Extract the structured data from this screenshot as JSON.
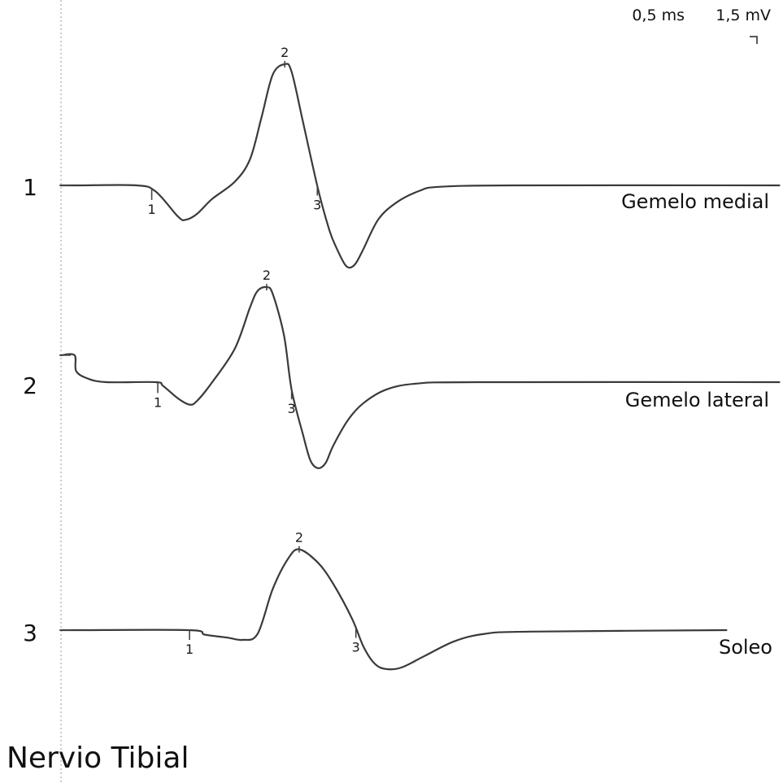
{
  "title": "Nervio Tibial",
  "scale": {
    "time": "0,5 ms",
    "amplitude": "1,5 mV"
  },
  "chart_data": {
    "type": "line",
    "xlabel": "",
    "ylabel": "",
    "grid": false,
    "units": {
      "x": "ms",
      "y": "mV"
    },
    "divisions": {
      "x_ms_per_div": 0.5,
      "y_mV_per_div": 1.5
    },
    "traces": [
      {
        "channel": "1",
        "name": "Gemelo medial",
        "points": [
          [
            0.0,
            0.0
          ],
          [
            0.25,
            0.0
          ],
          [
            1.0,
            0.0
          ],
          [
            1.25,
            -0.08
          ],
          [
            1.55,
            -0.42
          ],
          [
            1.65,
            -0.46
          ],
          [
            1.8,
            -0.38
          ],
          [
            2.0,
            -0.18
          ],
          [
            2.3,
            0.05
          ],
          [
            2.5,
            0.35
          ],
          [
            2.65,
            0.9
          ],
          [
            2.8,
            1.48
          ],
          [
            2.96,
            1.62
          ],
          [
            3.05,
            1.52
          ],
          [
            3.2,
            0.85
          ],
          [
            3.4,
            -0.05
          ],
          [
            3.55,
            -0.6
          ],
          [
            3.65,
            -0.85
          ],
          [
            3.75,
            -1.05
          ],
          [
            3.82,
            -1.1
          ],
          [
            3.9,
            -1.04
          ],
          [
            4.0,
            -0.85
          ],
          [
            4.2,
            -0.45
          ],
          [
            4.45,
            -0.22
          ],
          [
            4.75,
            -0.07
          ],
          [
            5.0,
            -0.02
          ],
          [
            6.0,
            0.0
          ],
          [
            9.5,
            0.0
          ]
        ],
        "markers": [
          {
            "label": "1",
            "x": 1.2
          },
          {
            "label": "2",
            "x": 2.96
          },
          {
            "label": "3",
            "x": 3.39
          }
        ]
      },
      {
        "channel": "2",
        "name": "Gemelo lateral",
        "points": [
          [
            0.0,
            0.36
          ],
          [
            0.18,
            0.36
          ],
          [
            0.2,
            0.15
          ],
          [
            0.35,
            0.05
          ],
          [
            0.6,
            0.0
          ],
          [
            1.25,
            0.0
          ],
          [
            1.35,
            -0.05
          ],
          [
            1.55,
            -0.22
          ],
          [
            1.7,
            -0.3
          ],
          [
            1.8,
            -0.25
          ],
          [
            2.0,
            0.0
          ],
          [
            2.3,
            0.45
          ],
          [
            2.5,
            1.0
          ],
          [
            2.6,
            1.22
          ],
          [
            2.72,
            1.27
          ],
          [
            2.8,
            1.18
          ],
          [
            2.95,
            0.62
          ],
          [
            3.05,
            -0.1
          ],
          [
            3.2,
            -0.7
          ],
          [
            3.3,
            -1.05
          ],
          [
            3.4,
            -1.15
          ],
          [
            3.5,
            -1.08
          ],
          [
            3.6,
            -0.85
          ],
          [
            3.8,
            -0.5
          ],
          [
            4.0,
            -0.28
          ],
          [
            4.3,
            -0.1
          ],
          [
            4.7,
            -0.02
          ],
          [
            5.5,
            0.0
          ],
          [
            9.5,
            0.0
          ]
        ],
        "markers": [
          {
            "label": "1",
            "x": 1.28
          },
          {
            "label": "2",
            "x": 2.72
          },
          {
            "label": "3",
            "x": 3.05
          }
        ]
      },
      {
        "channel": "3",
        "name": "Soleo",
        "points": [
          [
            0.0,
            0.0
          ],
          [
            0.25,
            0.0
          ],
          [
            1.7,
            0.0
          ],
          [
            1.9,
            -0.06
          ],
          [
            2.2,
            -0.1
          ],
          [
            2.4,
            -0.13
          ],
          [
            2.6,
            -0.05
          ],
          [
            2.8,
            0.55
          ],
          [
            3.0,
            0.95
          ],
          [
            3.15,
            1.08
          ],
          [
            3.4,
            0.9
          ],
          [
            3.6,
            0.62
          ],
          [
            3.85,
            0.15
          ],
          [
            4.0,
            -0.22
          ],
          [
            4.15,
            -0.45
          ],
          [
            4.3,
            -0.52
          ],
          [
            4.5,
            -0.5
          ],
          [
            4.8,
            -0.35
          ],
          [
            5.2,
            -0.15
          ],
          [
            5.6,
            -0.05
          ],
          [
            6.2,
            -0.02
          ],
          [
            8.8,
            0.0
          ]
        ],
        "markers": [
          {
            "label": "1",
            "x": 1.7
          },
          {
            "label": "2",
            "x": 3.15
          },
          {
            "label": "3",
            "x": 3.9
          }
        ]
      }
    ]
  }
}
